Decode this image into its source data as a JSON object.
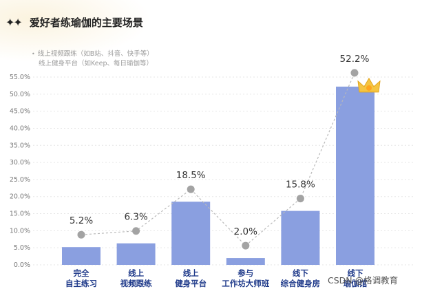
{
  "header": {
    "sparkle_icon": "sparkle-icon",
    "title": "爱好者练瑜伽的主要场景"
  },
  "notes": [
    "线上视频跟练（如B站、抖音、快手等）",
    "线上健身平台（如Keep、每日瑜伽等）"
  ],
  "watermark": "CSDN @格调教育",
  "chart_data": {
    "type": "bar",
    "title": "爱好者练瑜伽的主要场景",
    "categories": [
      [
        "完全",
        "自主练习"
      ],
      [
        "线上",
        "视频跟练"
      ],
      [
        "线上",
        "健身平台"
      ],
      [
        "参与",
        "工作坊大师班"
      ],
      [
        "线下",
        "综合健身房"
      ],
      [
        "线下",
        "瑜伽馆"
      ]
    ],
    "values": [
      5.2,
      6.3,
      18.5,
      2.0,
      15.8,
      52.2
    ],
    "data_labels": [
      "5.2%",
      "6.3%",
      "18.5%",
      "2.0%",
      "15.8%",
      "52.2%"
    ],
    "yticks": [
      "0.0%",
      "5.0%",
      "10.0%",
      "15.0%",
      "20.0%",
      "25.0%",
      "30.0%",
      "35.0%",
      "40.0%",
      "45.0%",
      "50.0%",
      "55.0%"
    ],
    "ylim": [
      0,
      55
    ],
    "grid": true,
    "colors": {
      "bar": "#8a9fe0",
      "marker": "#a3a3a3",
      "connector": "#b9b9b9",
      "crown": "#f5c542",
      "axis_text": "#777777",
      "category_text": "#1f3a8a"
    },
    "top_marker_icon": "crown-icon"
  }
}
